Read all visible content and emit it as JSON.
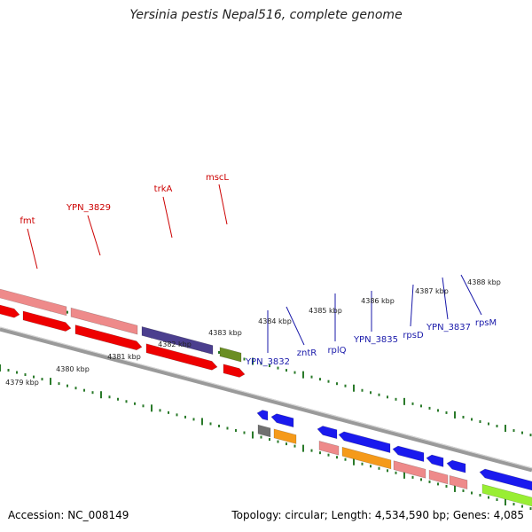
{
  "title": "Yersinia pestis Nepal516, complete genome",
  "footer": {
    "accession": "Accession: NC_008149",
    "summary": "Topology: circular; Length: 4,534,590 bp; Genes: 4,085"
  },
  "colors": {
    "backbone": "#9a9a9a",
    "tick": "#2a7a2a",
    "label_red": "#cc0000",
    "label_blue": "#1a1aaa",
    "pink": "#ee8a8a",
    "red": "#ee0000",
    "navy": "#4b3f8e",
    "olive": "#6b8e23",
    "blue": "#1a1aee",
    "grey": "#707070",
    "orange": "#f59a1a",
    "lime": "#99ee33"
  },
  "scale_labels": [
    "4379 kbp",
    "4380 kbp",
    "4381 kbp",
    "4382 kbp",
    "4383 kbp",
    "4384 kbp",
    "4385 kbp",
    "4386 kbp",
    "4387 kbp",
    "4388 kbp"
  ],
  "red_labels": [
    "fmt",
    "YPN_3829",
    "trkA",
    "mscL"
  ],
  "blue_labels": [
    "YPN_3832",
    "zntR",
    "rplQ",
    "YPN_3835",
    "rpsD",
    "YPN_3837",
    "rpsM"
  ]
}
